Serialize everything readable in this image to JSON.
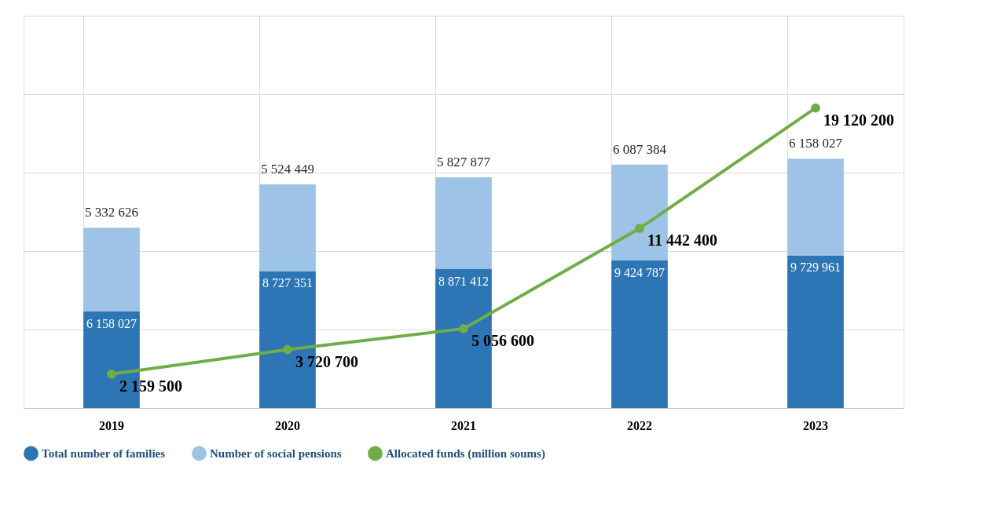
{
  "chart_data": {
    "type": "bar",
    "stacked": true,
    "categories": [
      "2019",
      "2020",
      "2021",
      "2022",
      "2023"
    ],
    "series": [
      {
        "name": "Total number of families",
        "color": "#2e75b6",
        "values": [
          6158027,
          8727351,
          8871412,
          9424787,
          9729961
        ]
      },
      {
        "name": "Number of social pensions",
        "color": "#9dc3e6",
        "values": [
          5332626,
          5524449,
          5827877,
          6087384,
          6158027
        ]
      },
      {
        "name": "Allocated funds (million soums)",
        "type": "line",
        "color": "#70ad47",
        "marker": "circle",
        "values": [
          2159500,
          3720700,
          5056600,
          11442400,
          19120200
        ]
      }
    ],
    "ylim": [
      0,
      25000000
    ],
    "yticks": [
      {
        "value": 0,
        "label": null
      },
      {
        "value": 5000000,
        "label": null
      },
      {
        "value": 10000000,
        "label": null
      },
      {
        "value": 15000000,
        "label": null
      },
      {
        "value": 20000000,
        "label": null
      },
      {
        "value": 25000000,
        "label": null
      }
    ],
    "tick_labels": "x",
    "grid": true,
    "data_labels": true,
    "legend": "bottom"
  }
}
